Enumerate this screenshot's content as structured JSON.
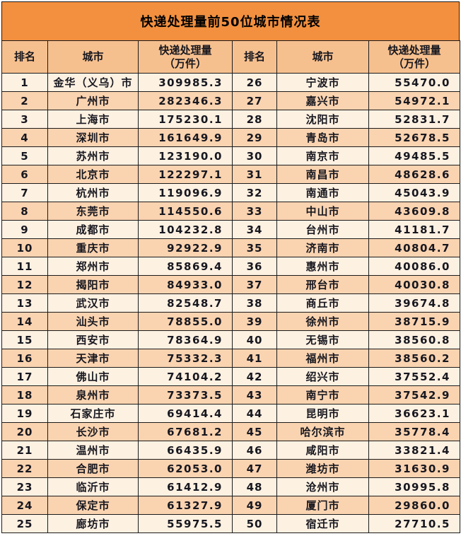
{
  "title": "快递处理量前50位城市情况表",
  "header": {
    "rank": "排名",
    "city": "城市",
    "volume_line1": "快递处理量",
    "volume_line2": "（万件）"
  },
  "colors": {
    "title_bg": "#F2903F",
    "header_bg": "#F6C08E",
    "row_cream": "#FDF1E2",
    "row_peach": "#FAD3B0",
    "border": "#1b1b1b",
    "text": "#17171F"
  },
  "chart_data": {
    "type": "table",
    "title": "快递处理量前50位城市情况表",
    "columns": [
      "排名",
      "城市",
      "快递处理量（万件）"
    ],
    "layout": "two-column-split, ranks 1-25 left half, ranks 26-50 right half",
    "rows": [
      [
        1,
        "金华（义乌）市",
        309985.3
      ],
      [
        2,
        "广州市",
        282346.3
      ],
      [
        3,
        "上海市",
        175230.1
      ],
      [
        4,
        "深圳市",
        161649.9
      ],
      [
        5,
        "苏州市",
        123190.0
      ],
      [
        6,
        "北京市",
        122297.1
      ],
      [
        7,
        "杭州市",
        119096.9
      ],
      [
        8,
        "东莞市",
        114550.6
      ],
      [
        9,
        "成都市",
        104232.8
      ],
      [
        10,
        "重庆市",
        92922.9
      ],
      [
        11,
        "郑州市",
        85869.4
      ],
      [
        12,
        "揭阳市",
        84933.0
      ],
      [
        13,
        "武汉市",
        82548.7
      ],
      [
        14,
        "汕头市",
        78855.0
      ],
      [
        15,
        "西安市",
        78364.9
      ],
      [
        16,
        "天津市",
        75332.3
      ],
      [
        17,
        "佛山市",
        74104.2
      ],
      [
        18,
        "泉州市",
        73373.5
      ],
      [
        19,
        "石家庄市",
        69414.4
      ],
      [
        20,
        "长沙市",
        67681.2
      ],
      [
        21,
        "温州市",
        66435.9
      ],
      [
        22,
        "合肥市",
        62053.0
      ],
      [
        23,
        "临沂市",
        61412.9
      ],
      [
        24,
        "保定市",
        61327.9
      ],
      [
        25,
        "廊坊市",
        55975.5
      ],
      [
        26,
        "宁波市",
        55470.0
      ],
      [
        27,
        "嘉兴市",
        54972.1
      ],
      [
        28,
        "沈阳市",
        52831.7
      ],
      [
        29,
        "青岛市",
        52678.5
      ],
      [
        30,
        "南京市",
        49485.5
      ],
      [
        31,
        "南昌市",
        48628.6
      ],
      [
        32,
        "南通市",
        45043.9
      ],
      [
        33,
        "中山市",
        43609.8
      ],
      [
        34,
        "台州市",
        41181.7
      ],
      [
        35,
        "济南市",
        40804.7
      ],
      [
        36,
        "惠州市",
        40086.0
      ],
      [
        37,
        "邢台市",
        40030.8
      ],
      [
        38,
        "商丘市",
        39674.8
      ],
      [
        39,
        "徐州市",
        38715.9
      ],
      [
        40,
        "无锡市",
        38560.8
      ],
      [
        41,
        "福州市",
        38560.2
      ],
      [
        42,
        "绍兴市",
        37552.4
      ],
      [
        43,
        "南宁市",
        37542.9
      ],
      [
        44,
        "昆明市",
        36623.1
      ],
      [
        45,
        "哈尔滨市",
        35778.4
      ],
      [
        46,
        "咸阳市",
        33821.4
      ],
      [
        47,
        "潍坊市",
        31630.9
      ],
      [
        48,
        "沧州市",
        30995.8
      ],
      [
        49,
        "厦门市",
        29860.0
      ],
      [
        50,
        "宿迁市",
        27710.5
      ]
    ]
  }
}
